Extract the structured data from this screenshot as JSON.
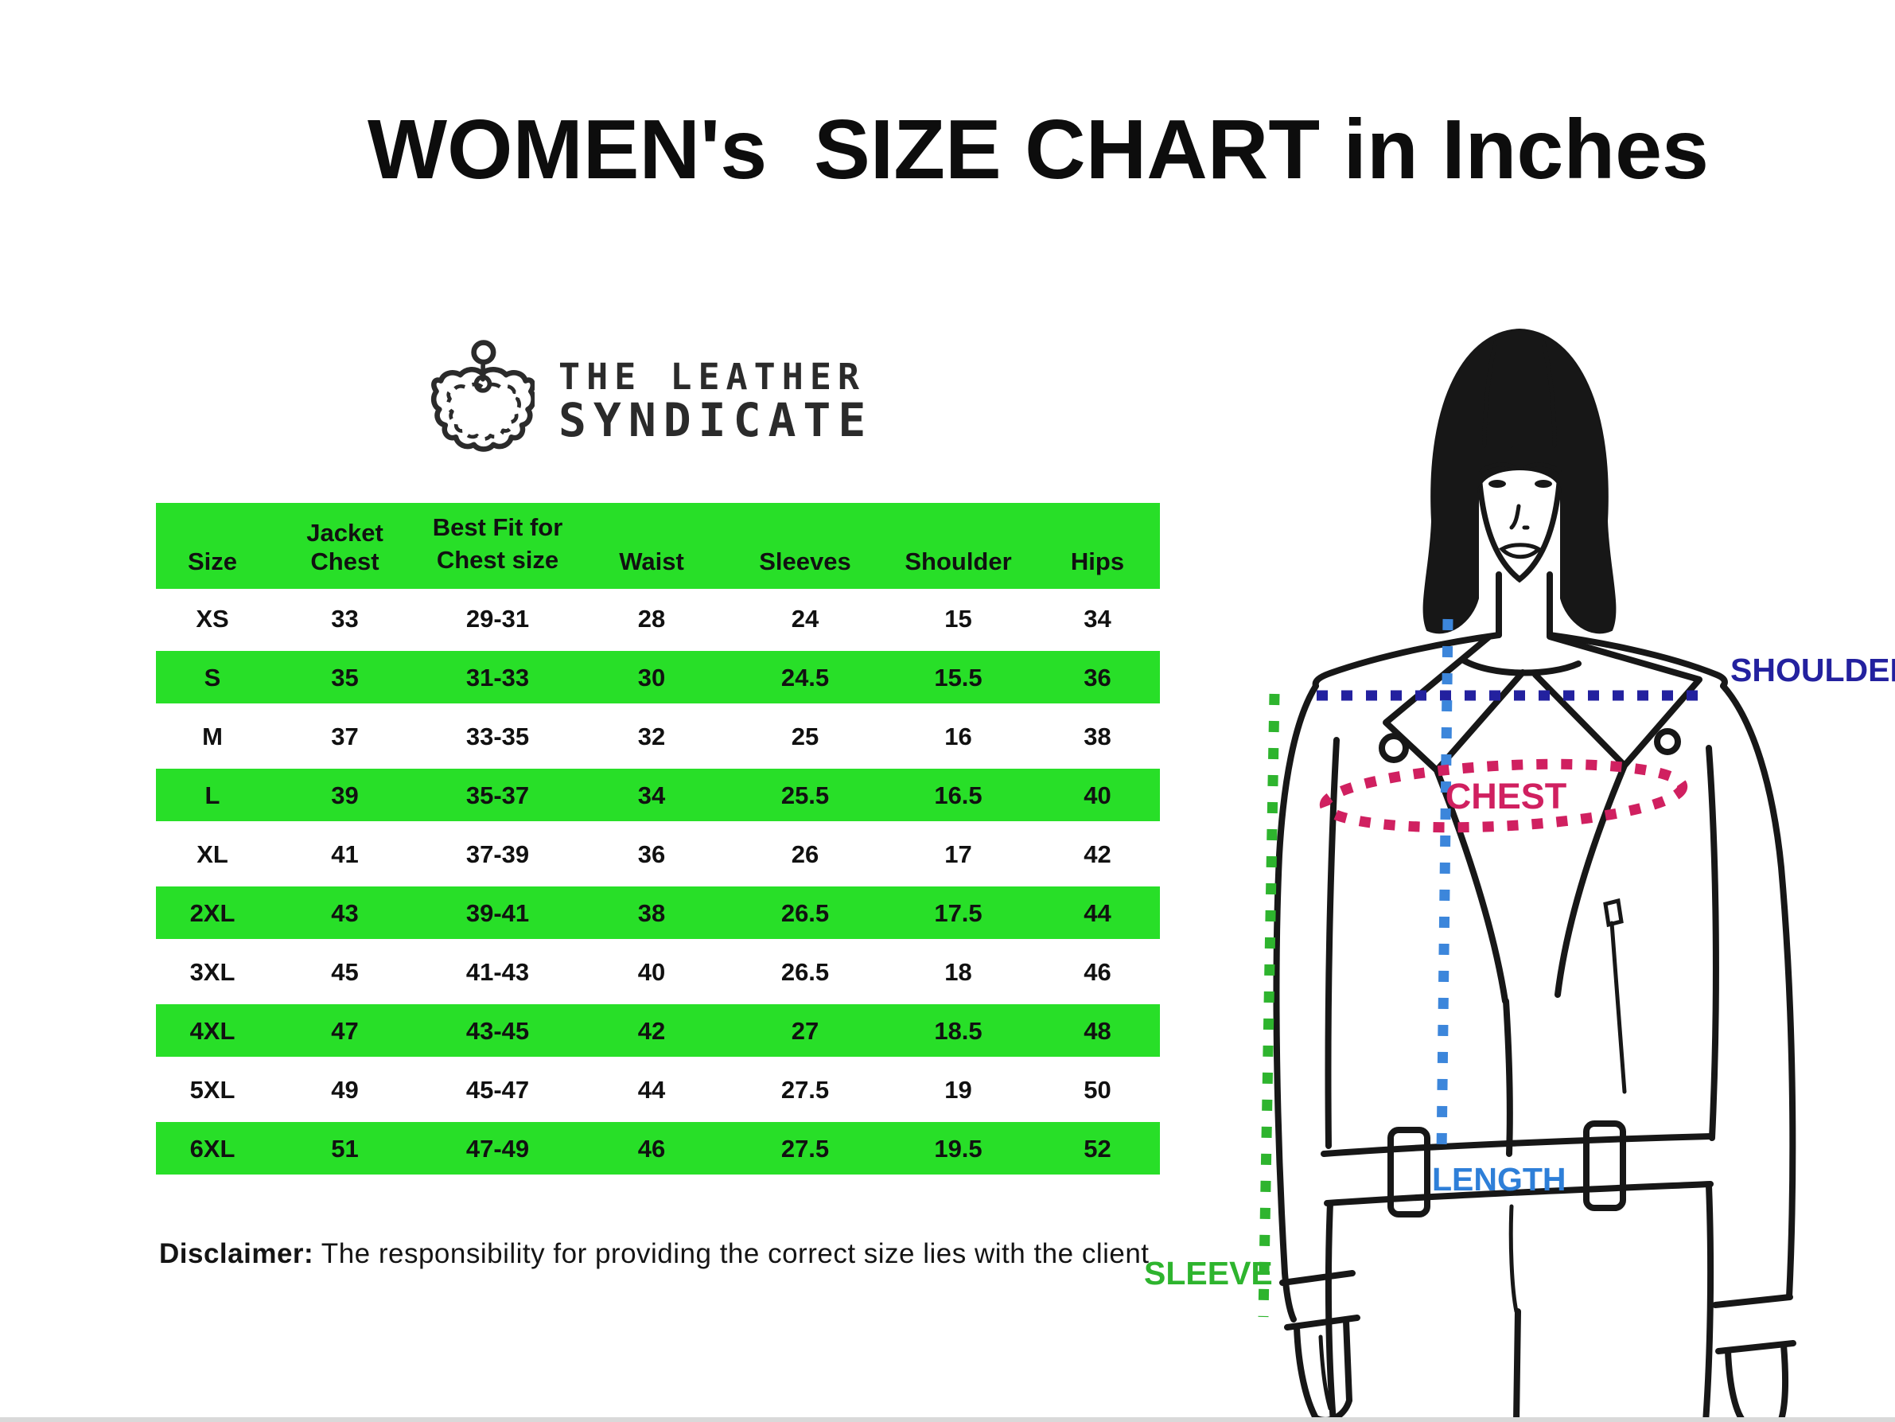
{
  "title": "WOMEN's  SIZE CHART in Inches",
  "logo": {
    "line1": "THE LEATHER",
    "line2": "SYNDICATE"
  },
  "table": {
    "header": {
      "size": "Size",
      "jacket_chest": "Jacket Chest",
      "best_fit_line1": "Best Fit for",
      "best_fit_line2": "Chest size",
      "waist": "Waist",
      "sleeves": "Sleeves",
      "shoulder": "Shoulder",
      "hips": "Hips"
    },
    "rows": [
      {
        "size": "XS",
        "jacket_chest": "33",
        "chest_size": "29-31",
        "waist": "28",
        "sleeves": "24",
        "shoulder": "15",
        "hips": "34",
        "highlight": false
      },
      {
        "size": "S",
        "jacket_chest": "35",
        "chest_size": "31-33",
        "waist": "30",
        "sleeves": "24.5",
        "shoulder": "15.5",
        "hips": "36",
        "highlight": true
      },
      {
        "size": "M",
        "jacket_chest": "37",
        "chest_size": "33-35",
        "waist": "32",
        "sleeves": "25",
        "shoulder": "16",
        "hips": "38",
        "highlight": false
      },
      {
        "size": "L",
        "jacket_chest": "39",
        "chest_size": "35-37",
        "waist": "34",
        "sleeves": "25.5",
        "shoulder": "16.5",
        "hips": "40",
        "highlight": true
      },
      {
        "size": "XL",
        "jacket_chest": "41",
        "chest_size": "37-39",
        "waist": "36",
        "sleeves": "26",
        "shoulder": "17",
        "hips": "42",
        "highlight": false
      },
      {
        "size": "2XL",
        "jacket_chest": "43",
        "chest_size": "39-41",
        "waist": "38",
        "sleeves": "26.5",
        "shoulder": "17.5",
        "hips": "44",
        "highlight": true
      },
      {
        "size": "3XL",
        "jacket_chest": "45",
        "chest_size": "41-43",
        "waist": "40",
        "sleeves": "26.5",
        "shoulder": "18",
        "hips": "46",
        "highlight": false
      },
      {
        "size": "4XL",
        "jacket_chest": "47",
        "chest_size": "43-45",
        "waist": "42",
        "sleeves": "27",
        "shoulder": "18.5",
        "hips": "48",
        "highlight": true
      },
      {
        "size": "5XL",
        "jacket_chest": "49",
        "chest_size": "45-47",
        "waist": "44",
        "sleeves": "27.5",
        "shoulder": "19",
        "hips": "50",
        "highlight": false
      },
      {
        "size": "6XL",
        "jacket_chest": "51",
        "chest_size": "47-49",
        "waist": "46",
        "sleeves": "27.5",
        "shoulder": "19.5",
        "hips": "52",
        "highlight": true
      }
    ]
  },
  "disclaimer": {
    "label": "Disclaimer:",
    "text": " The responsibility for providing the correct size lies with the client"
  },
  "figure": {
    "labels": {
      "shoulder": "SHOULDER",
      "chest": "CHEST",
      "length": "LENGTH",
      "sleeve": "SLEEVE"
    }
  },
  "colors": {
    "row_highlight": "#28df28",
    "shoulder": "#23219f",
    "chest": "#d02060",
    "length": "#2e7fd8",
    "length_line": "#3c86db",
    "sleeve": "#2eb42e"
  }
}
